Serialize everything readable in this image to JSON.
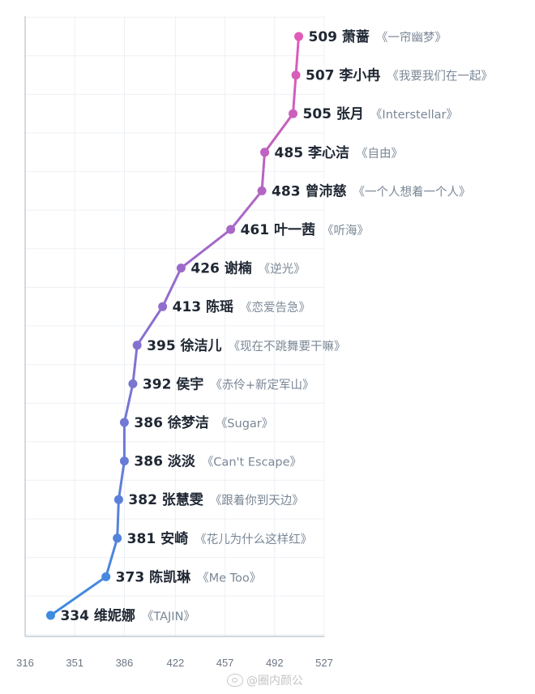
{
  "chart_data": {
    "type": "line",
    "orientation": "horizontal-value",
    "xlim": [
      316,
      527
    ],
    "x_ticks": [
      "316",
      "351",
      "386",
      "422",
      "457",
      "492",
      "527"
    ],
    "grid": true,
    "color_gradient": [
      "#3e8be0",
      "#8a6fcf",
      "#e25ab7"
    ],
    "points": [
      {
        "value": 509,
        "name": "萧蔷",
        "song": "《一帘幽梦》"
      },
      {
        "value": 507,
        "name": "李小冉",
        "song": "《我要我们在一起》"
      },
      {
        "value": 505,
        "name": "张月",
        "song": "《Interstellar》"
      },
      {
        "value": 485,
        "name": "李心洁",
        "song": "《自由》"
      },
      {
        "value": 483,
        "name": "曾沛慈",
        "song": "《一个人想着一个人》"
      },
      {
        "value": 461,
        "name": "叶一茜",
        "song": "《听海》"
      },
      {
        "value": 426,
        "name": "谢楠",
        "song": "《逆光》"
      },
      {
        "value": 413,
        "name": "陈瑶",
        "song": "《恋爱告急》"
      },
      {
        "value": 395,
        "name": "徐洁儿",
        "song": "《现在不跳舞要干嘛》"
      },
      {
        "value": 392,
        "name": "侯宇",
        "song": "《赤伶+新定军山》"
      },
      {
        "value": 386,
        "name": "徐梦洁",
        "song": "《Sugar》"
      },
      {
        "value": 386,
        "name": "淡淡",
        "song": "《Can't Escape》"
      },
      {
        "value": 382,
        "name": "张慧雯",
        "song": "《跟着你到天边》"
      },
      {
        "value": 381,
        "name": "安崎",
        "song": "《花儿为什么这样红》"
      },
      {
        "value": 373,
        "name": "陈凯琳",
        "song": "《Me Too》"
      },
      {
        "value": 334,
        "name": "维妮娜",
        "song": "《TAJIN》"
      }
    ]
  },
  "watermark": {
    "text": "@圈内颜公"
  }
}
